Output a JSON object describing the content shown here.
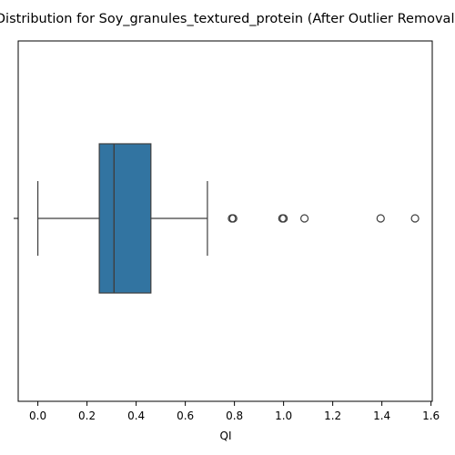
{
  "chart_data": {
    "type": "boxplot",
    "orientation": "horizontal",
    "title": "Distribution for Soy_granules_textured_protein (After Outlier Removal)",
    "xlabel": "QI",
    "ylabel": "",
    "xlim": [
      -0.08,
      1.605
    ],
    "xticks": [
      0.0,
      0.2,
      0.4,
      0.6,
      0.8,
      1.0,
      1.2,
      1.4,
      1.6
    ],
    "xtick_labels": [
      "0.0",
      "0.2",
      "0.4",
      "0.6",
      "0.8",
      "1.0",
      "1.2",
      "1.4",
      "1.6"
    ],
    "grid": false,
    "box": {
      "whisker_low": 0.0,
      "q1": 0.25,
      "median": 0.31,
      "q3": 0.46,
      "whisker_high": 0.69
    },
    "outliers": [
      0.79,
      0.795,
      0.995,
      1.0,
      1.085,
      1.395,
      1.535
    ],
    "colors": {
      "box_fill": "#3274a1",
      "line": "#3f3f3f",
      "axis": "#000000"
    }
  }
}
